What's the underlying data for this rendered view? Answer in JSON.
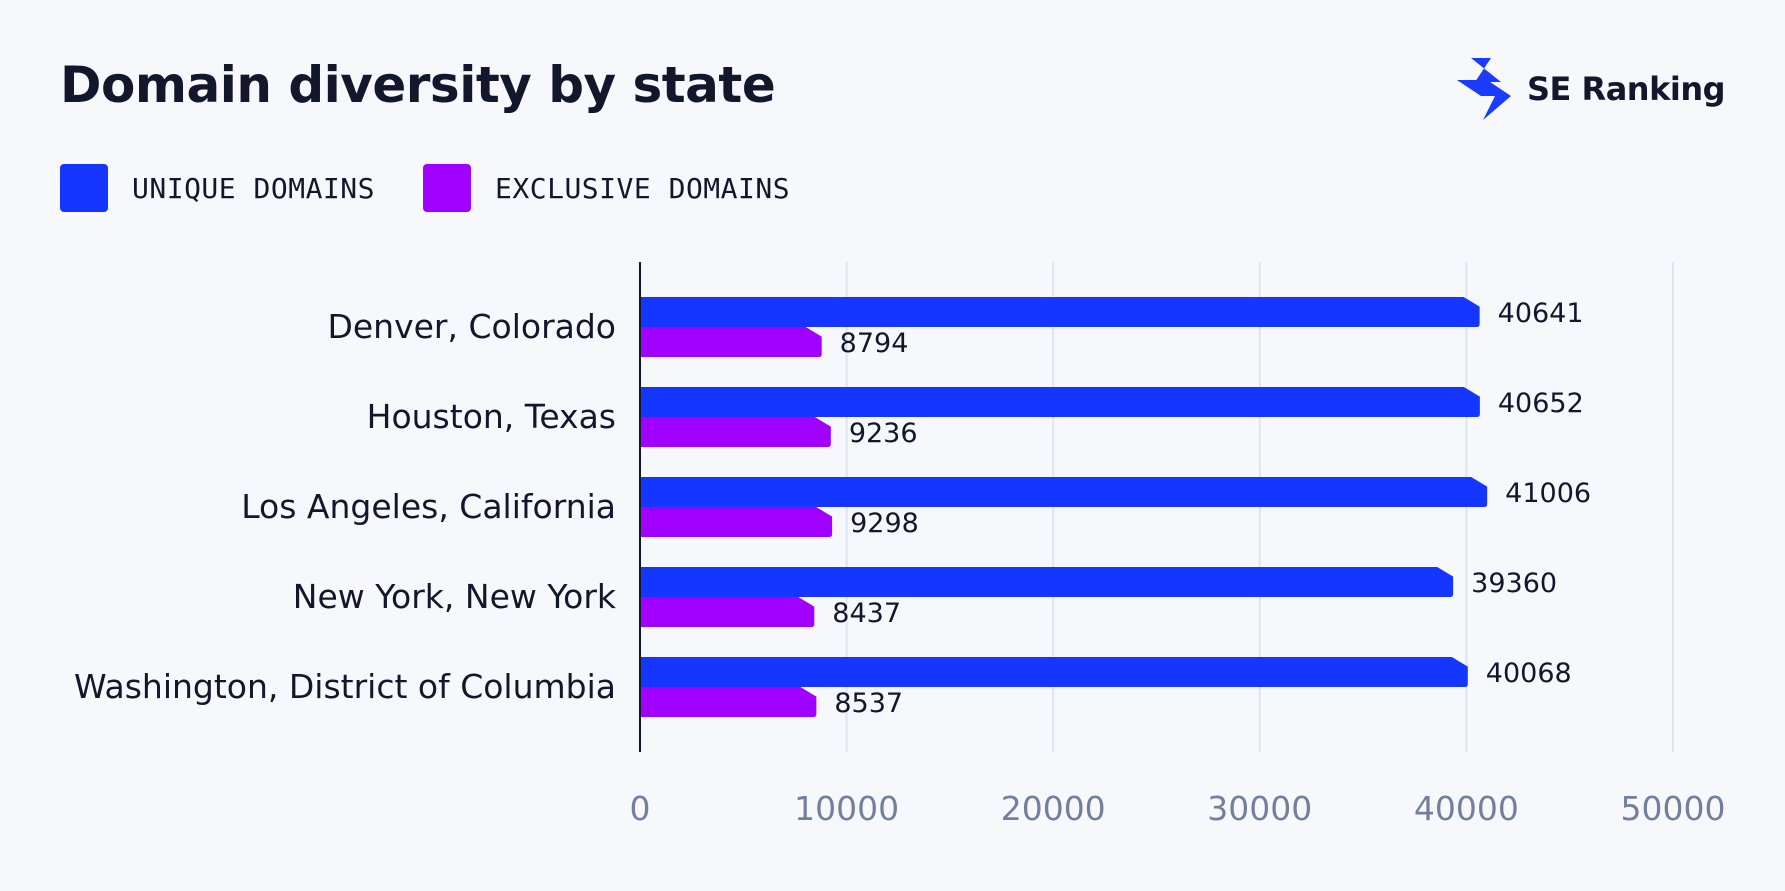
{
  "header": {
    "title": "Domain diversity by state"
  },
  "brand": {
    "name": "SE Ranking",
    "icon": "se-ranking-logo-icon",
    "color": "#1a3cff"
  },
  "legend": {
    "items": [
      {
        "label": "UNIQUE DOMAINS",
        "color": "#1536ff"
      },
      {
        "label": "EXCLUSIVE DOMAINS",
        "color": "#a000ff"
      }
    ]
  },
  "chart_data": {
    "type": "bar",
    "orientation": "horizontal",
    "title": "Domain diversity by state",
    "xlabel": "",
    "ylabel": "",
    "categories": [
      "Denver, Colorado",
      "Houston, Texas",
      "Los Angeles, California",
      "New York, New York",
      "Washington, District of Columbia"
    ],
    "series": [
      {
        "name": "UNIQUE DOMAINS",
        "color": "#1536ff",
        "values": [
          40641,
          40652,
          41006,
          39360,
          40068
        ]
      },
      {
        "name": "EXCLUSIVE DOMAINS",
        "color": "#a000ff",
        "values": [
          8794,
          9236,
          9298,
          8437,
          8537
        ]
      }
    ],
    "xlim": [
      0,
      50000
    ],
    "xticks": [
      0,
      10000,
      20000,
      30000,
      40000,
      50000
    ],
    "xtick_labels": [
      "0",
      "10000",
      "20000",
      "30000",
      "40000",
      "50000"
    ],
    "grid": "vertical",
    "grid_color": "#dfe5ef",
    "legend_position": "top-left",
    "data_labels": true
  }
}
